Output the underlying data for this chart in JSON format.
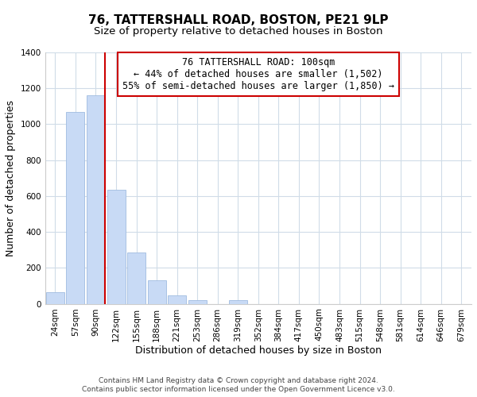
{
  "title": "76, TATTERSHALL ROAD, BOSTON, PE21 9LP",
  "subtitle": "Size of property relative to detached houses in Boston",
  "xlabel": "Distribution of detached houses by size in Boston",
  "ylabel": "Number of detached properties",
  "footnote1": "Contains HM Land Registry data © Crown copyright and database right 2024.",
  "footnote2": "Contains public sector information licensed under the Open Government Licence v3.0.",
  "bin_labels": [
    "24sqm",
    "57sqm",
    "90sqm",
    "122sqm",
    "155sqm",
    "188sqm",
    "221sqm",
    "253sqm",
    "286sqm",
    "319sqm",
    "352sqm",
    "384sqm",
    "417sqm",
    "450sqm",
    "483sqm",
    "515sqm",
    "548sqm",
    "581sqm",
    "614sqm",
    "646sqm",
    "679sqm"
  ],
  "bar_heights": [
    65,
    1070,
    1160,
    635,
    285,
    130,
    47,
    20,
    0,
    20,
    0,
    0,
    0,
    0,
    0,
    0,
    0,
    0,
    0,
    0,
    0
  ],
  "bar_color": "#c8daf5",
  "bar_edge_color": "#a0bce0",
  "vline_color": "#cc0000",
  "annotation_text": "76 TATTERSHALL ROAD: 100sqm\n← 44% of detached houses are smaller (1,502)\n55% of semi-detached houses are larger (1,850) →",
  "annotation_box_color": "#ffffff",
  "annotation_box_edge": "#cc0000",
  "ylim": [
    0,
    1400
  ],
  "yticks": [
    0,
    200,
    400,
    600,
    800,
    1000,
    1200,
    1400
  ],
  "background_color": "#ffffff",
  "grid_color": "#d0dce8",
  "title_fontsize": 11,
  "subtitle_fontsize": 9.5,
  "axis_label_fontsize": 9,
  "tick_fontsize": 7.5,
  "annotation_fontsize": 8.5,
  "footnote_fontsize": 6.5
}
